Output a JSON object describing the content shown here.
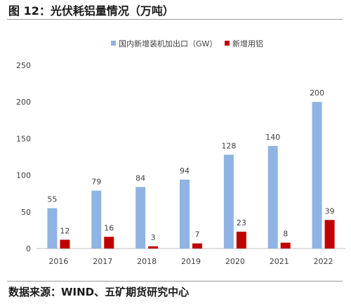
{
  "figure_title": "图 12：光伏耗铝量情况（万吨）",
  "source_text": "数据来源：WIND、五矿期货研究中心",
  "chart_data": {
    "type": "bar",
    "title": "",
    "xlabel": "",
    "ylabel": "",
    "categories": [
      "2016",
      "2017",
      "2018",
      "2019",
      "2020",
      "2021",
      "2022"
    ],
    "series": [
      {
        "name": "国内新增装机加出口（GW）",
        "color": "#8fb4e3",
        "values": [
          55,
          79,
          84,
          94,
          128,
          140,
          200
        ]
      },
      {
        "name": "新增用铝",
        "color": "#c00000",
        "values": [
          12,
          16,
          3,
          7,
          23,
          8,
          39
        ]
      }
    ],
    "ylim": [
      0,
      250
    ],
    "yticks": [
      0,
      50,
      100,
      150,
      200,
      250
    ],
    "grid": false,
    "legend_position": "top-right"
  }
}
